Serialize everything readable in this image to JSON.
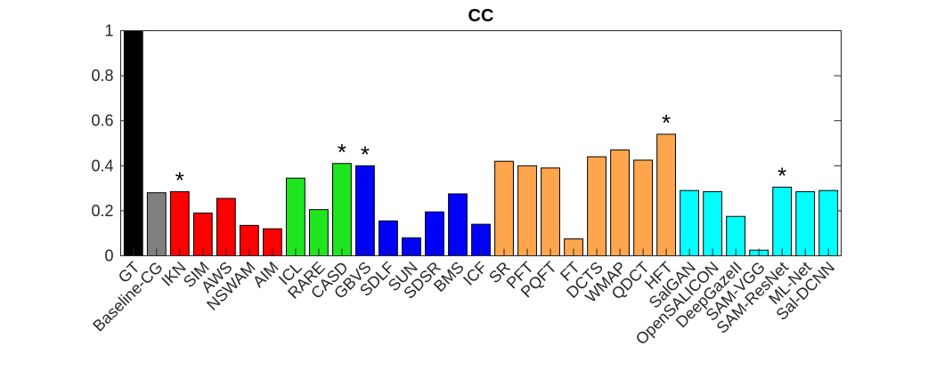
{
  "chart_data": {
    "type": "bar",
    "title": "CC",
    "xlabel": "",
    "ylabel": "",
    "ylim": [
      0,
      1
    ],
    "yticks": [
      0,
      0.2,
      0.4,
      0.6,
      0.8,
      1
    ],
    "ytick_labels": [
      "0",
      "0.2",
      "0.4",
      "0.6",
      "0.8",
      "1"
    ],
    "grid": false,
    "categories": [
      "GT",
      "Baseline-CG",
      "IKN",
      "SIM",
      "AWS",
      "NSWAM",
      "AIM",
      "ICL",
      "RARE",
      "CASD",
      "GBVS",
      "SDLF",
      "SUN",
      "SDSR",
      "BMS",
      "ICF",
      "SR",
      "PFT",
      "PQFT",
      "FT",
      "DCTS",
      "WMAP",
      "QDCT",
      "HFT",
      "SalGAN",
      "OpenSALICON",
      "DeepGazeII",
      "SAM-VGG",
      "SAM-ResNet",
      "ML-Net",
      "Sal-DCNN"
    ],
    "values": [
      1.0,
      0.28,
      0.285,
      0.19,
      0.255,
      0.135,
      0.12,
      0.345,
      0.205,
      0.41,
      0.4,
      0.155,
      0.08,
      0.195,
      0.275,
      0.14,
      0.42,
      0.4,
      0.39,
      0.075,
      0.44,
      0.47,
      0.425,
      0.54,
      0.29,
      0.285,
      0.175,
      0.025,
      0.305,
      0.285,
      0.29
    ],
    "colors": [
      "#000000",
      "#808080",
      "#ff0000",
      "#ff0000",
      "#ff0000",
      "#ff0000",
      "#ff0000",
      "#1ee61e",
      "#1ee61e",
      "#1ee61e",
      "#0000ff",
      "#0000ff",
      "#0000ff",
      "#0000ff",
      "#0000ff",
      "#0000ff",
      "#ffa64d",
      "#ffa64d",
      "#ffa64d",
      "#ffa64d",
      "#ffa64d",
      "#ffa64d",
      "#ffa64d",
      "#ffa64d",
      "#00ffff",
      "#00ffff",
      "#00ffff",
      "#00ffff",
      "#00ffff",
      "#00ffff",
      "#00ffff"
    ],
    "starred": [
      "IKN",
      "CASD",
      "GBVS",
      "HFT",
      "SAM-ResNet"
    ],
    "star_symbol": "*"
  }
}
